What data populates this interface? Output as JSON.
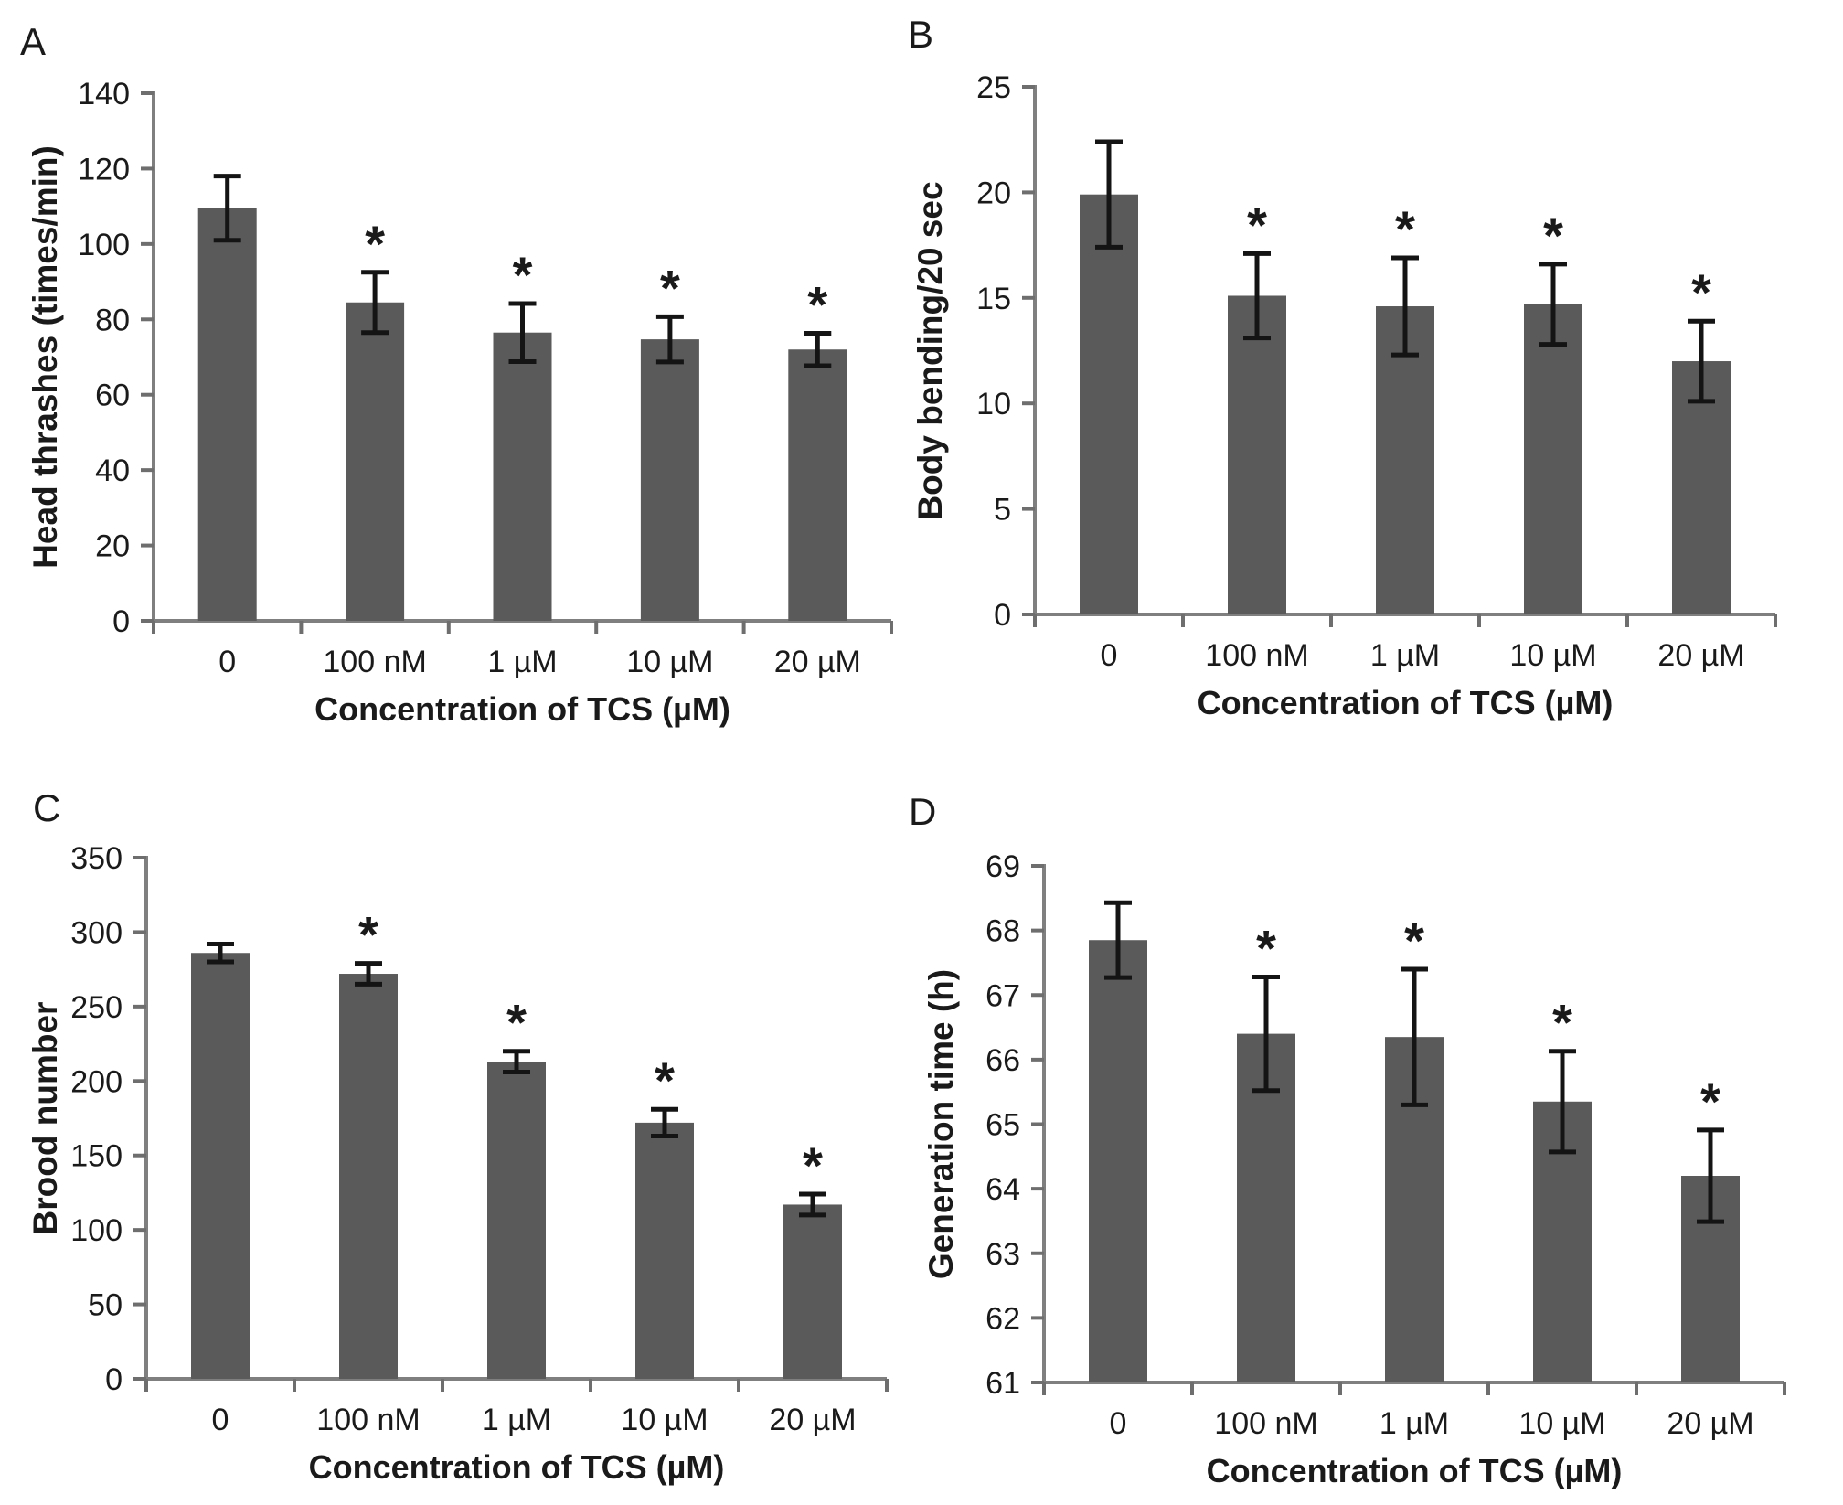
{
  "figure": {
    "background": "#ffffff",
    "bar_color": "#5a5a5a",
    "axis_color": "#7f7f7f",
    "tick_color": "#6e6e6e",
    "error_bar_color": "#141414",
    "text_color": "#1a1a1a"
  },
  "chart_data": [
    {
      "panel": "A",
      "type": "bar",
      "title": "",
      "ylabel": "Head thrashes (times/min)",
      "xlabel": "Concentration of TCS (µM)",
      "categories": [
        "0",
        "100 nM",
        "1 µM",
        "10 µM",
        "20 µM"
      ],
      "values": [
        109.5,
        84.5,
        76.5,
        74.7,
        72
      ],
      "errors": [
        8.5,
        8,
        7.7,
        6,
        4.3
      ],
      "significance": [
        "",
        "*",
        "*",
        "*",
        "*"
      ],
      "ylim": [
        0,
        140
      ],
      "ytick_step": 20,
      "grid": false,
      "legend": false
    },
    {
      "panel": "B",
      "type": "bar",
      "title": "",
      "ylabel": "Body bending/20 sec",
      "xlabel": "Concentration of TCS (µM)",
      "categories": [
        "0",
        "100 nM",
        "1 µM",
        "10 µM",
        "20 µM"
      ],
      "values": [
        19.9,
        15.1,
        14.6,
        14.7,
        12.0
      ],
      "errors": [
        2.5,
        2.0,
        2.3,
        1.9,
        1.9
      ],
      "significance": [
        "",
        "*",
        "*",
        "*",
        "*"
      ],
      "ylim": [
        0,
        25
      ],
      "ytick_step": 5,
      "grid": false,
      "legend": false
    },
    {
      "panel": "C",
      "type": "bar",
      "title": "",
      "ylabel": "Brood number",
      "xlabel": "Concentration of TCS (µM)",
      "categories": [
        "0",
        "100 nM",
        "1 µM",
        "10 µM",
        "20 µM"
      ],
      "values": [
        286,
        272,
        213,
        172,
        117
      ],
      "errors": [
        6,
        7,
        7,
        9,
        7
      ],
      "significance": [
        "",
        "*",
        "*",
        "*",
        "*"
      ],
      "ylim": [
        0,
        350
      ],
      "ytick_step": 50,
      "grid": false,
      "legend": false
    },
    {
      "panel": "D",
      "type": "bar",
      "title": "",
      "ylabel": "Generation time (h)",
      "xlabel": "Concentration of TCS (µM)",
      "categories": [
        "0",
        "100 nM",
        "1 µM",
        "10 µM",
        "20 µM"
      ],
      "values": [
        67.85,
        66.4,
        66.35,
        65.35,
        64.2
      ],
      "errors": [
        0.58,
        0.88,
        1.05,
        0.78,
        0.71
      ],
      "significance": [
        "",
        "*",
        "*",
        "*",
        "*"
      ],
      "ylim": [
        61,
        69
      ],
      "ytick_step": 1,
      "grid": false,
      "legend": false
    }
  ]
}
